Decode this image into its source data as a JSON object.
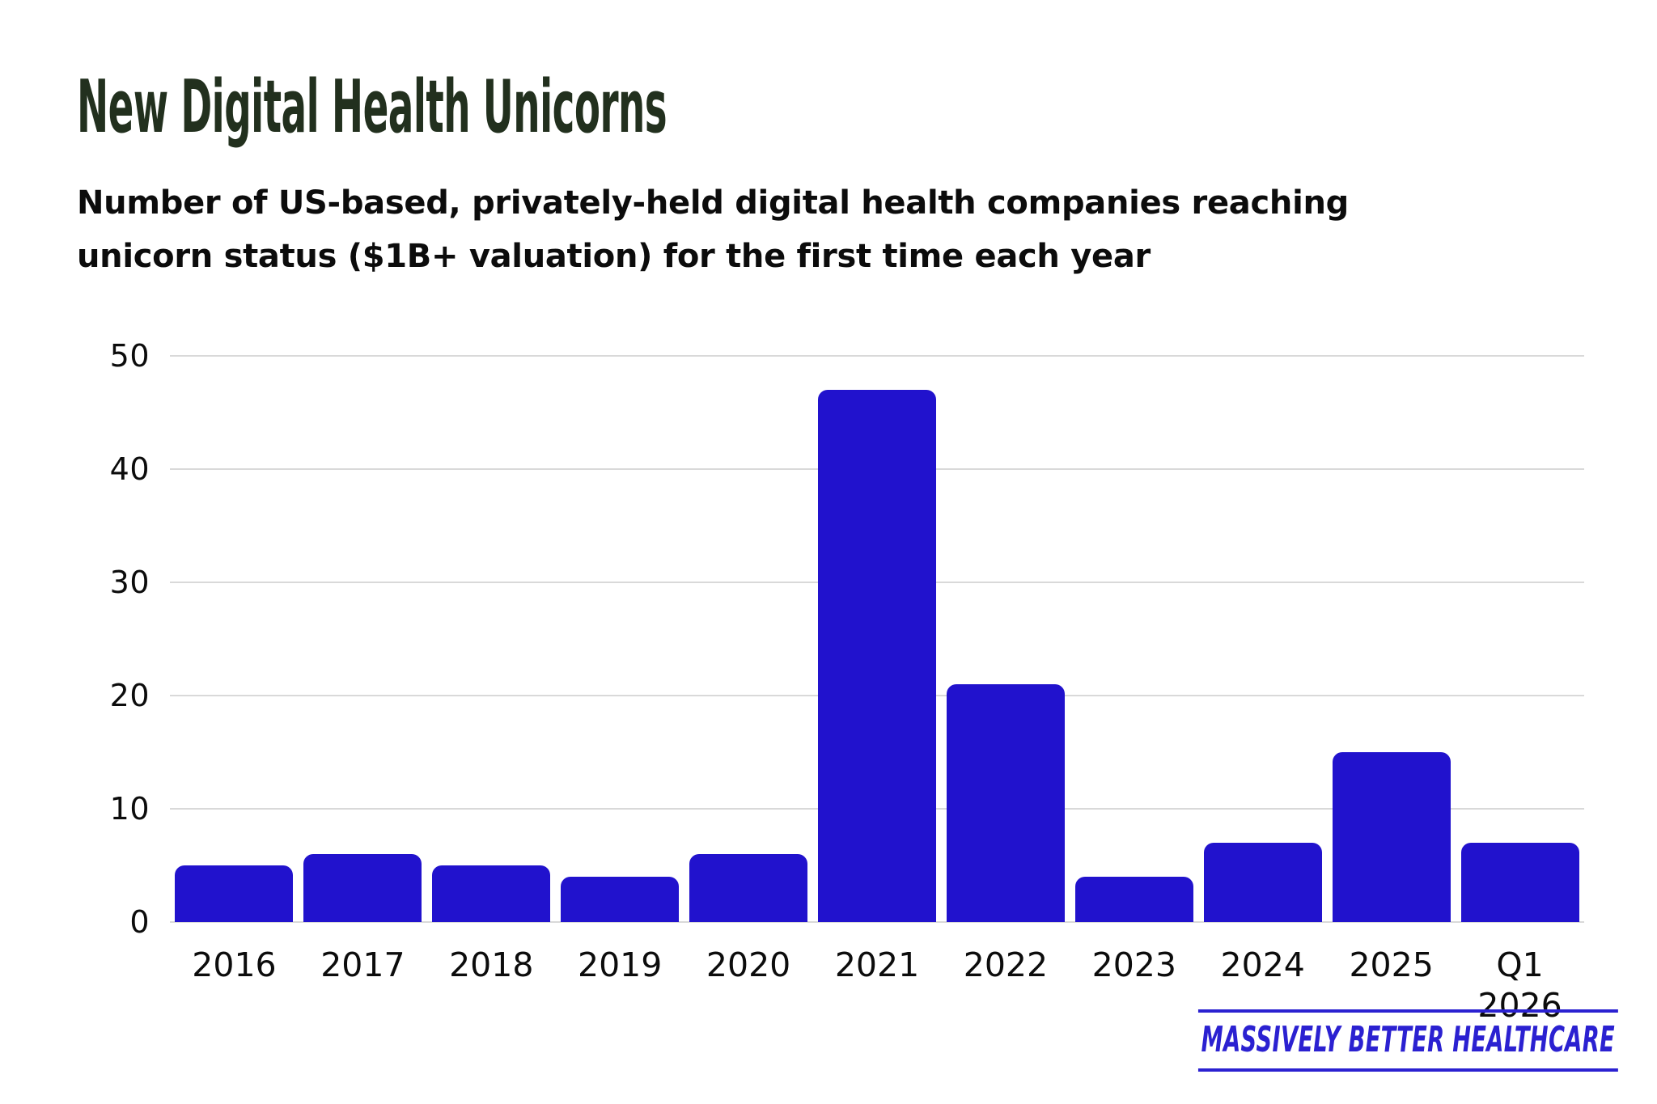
{
  "header": {
    "title": "New Digital Health Unicorns",
    "subtitle_lines": [
      "Number of US-based, privately-held digital health companies reaching",
      "unicorn status ($1B+ valuation) for the first time each year"
    ]
  },
  "chart_data": {
    "type": "bar",
    "title": "New Digital Health Unicorns",
    "subtitle": "Number of US-based, privately-held digital health companies reaching unicorn status ($1B+ valuation) for the first time each year",
    "categories": [
      "2016",
      "2017",
      "2018",
      "2019",
      "2020",
      "2021",
      "2022",
      "2023",
      "2024",
      "2025",
      "Q1 2026"
    ],
    "values": [
      5,
      6,
      5,
      4,
      6,
      47,
      21,
      4,
      7,
      15,
      7
    ],
    "xlabel": "",
    "ylabel": "",
    "ylim": [
      0,
      50
    ],
    "yticks": [
      0,
      10,
      20,
      30,
      40,
      50
    ],
    "grid": "horizontal",
    "legend_position": "none",
    "bar_color": "#2112cd"
  },
  "footer": {
    "brand": "MASSIVELY BETTER HEALTHCARE",
    "brand_color": "#2b21d1"
  },
  "colors": {
    "background": "#ffffff",
    "title_text": "#22301e",
    "body_text": "#0c0c0c",
    "gridline": "#d9d9d9"
  }
}
